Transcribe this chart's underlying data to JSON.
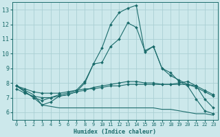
{
  "title": "",
  "xlabel": "Humidex (Indice chaleur)",
  "ylabel": "",
  "background_color": "#cce8eb",
  "grid_color": "#aacfd4",
  "line_color": "#1a6b6b",
  "xlim": [
    -0.5,
    23.5
  ],
  "ylim": [
    5.5,
    13.5
  ],
  "xticks": [
    0,
    1,
    2,
    3,
    4,
    5,
    6,
    7,
    8,
    9,
    10,
    11,
    12,
    13,
    14,
    15,
    16,
    17,
    18,
    19,
    20,
    21,
    22,
    23
  ],
  "yticks": [
    6,
    7,
    8,
    9,
    10,
    11,
    12,
    13
  ],
  "series": [
    {
      "x": [
        0,
        1,
        2,
        3,
        4,
        5,
        6,
        7,
        8,
        9,
        10,
        11,
        12,
        13,
        14,
        15,
        16,
        17,
        18,
        19,
        20,
        21,
        22,
        23
      ],
      "y": [
        7.8,
        7.4,
        7.0,
        6.5,
        6.7,
        7.1,
        7.2,
        7.4,
        8.0,
        9.3,
        10.4,
        12.0,
        12.8,
        13.1,
        13.3,
        10.1,
        10.5,
        9.0,
        8.7,
        8.1,
        7.8,
        6.9,
        6.1,
        5.9
      ],
      "marker": "D",
      "markersize": 2.0,
      "linewidth": 0.8
    },
    {
      "x": [
        0,
        1,
        2,
        3,
        4,
        5,
        6,
        7,
        8,
        9,
        10,
        11,
        12,
        13,
        14,
        15,
        16,
        17,
        18,
        19,
        20,
        21,
        22,
        23
      ],
      "y": [
        7.8,
        7.4,
        7.0,
        6.8,
        7.0,
        7.2,
        7.3,
        7.5,
        8.1,
        9.3,
        9.4,
        10.5,
        11.0,
        12.1,
        11.8,
        10.2,
        10.5,
        9.0,
        8.5,
        8.2,
        7.9,
        7.8,
        6.9,
        6.3
      ],
      "marker": "D",
      "markersize": 2.0,
      "linewidth": 0.8
    },
    {
      "x": [
        0,
        1,
        2,
        3,
        4,
        5,
        6,
        7,
        8,
        9,
        10,
        11,
        12,
        13,
        14,
        15,
        16,
        17,
        18,
        19,
        20,
        21,
        22,
        23
      ],
      "y": [
        7.6,
        7.3,
        7.1,
        7.0,
        7.0,
        7.1,
        7.2,
        7.4,
        7.5,
        7.7,
        7.8,
        7.9,
        8.0,
        8.1,
        8.1,
        8.0,
        8.0,
        7.9,
        7.9,
        8.0,
        8.1,
        7.8,
        7.5,
        7.2
      ],
      "marker": "D",
      "markersize": 2.0,
      "linewidth": 0.8
    },
    {
      "x": [
        0,
        1,
        2,
        3,
        4,
        5,
        6,
        7,
        8,
        9,
        10,
        11,
        12,
        13,
        14,
        15,
        16,
        17,
        18,
        19,
        20,
        21,
        22,
        23
      ],
      "y": [
        7.8,
        7.6,
        7.4,
        7.3,
        7.3,
        7.3,
        7.4,
        7.5,
        7.6,
        7.6,
        7.7,
        7.8,
        7.8,
        7.9,
        7.9,
        7.9,
        7.9,
        7.9,
        7.9,
        7.9,
        7.9,
        7.7,
        7.4,
        7.1
      ],
      "marker": "D",
      "markersize": 2.0,
      "linewidth": 0.8
    },
    {
      "x": [
        0,
        1,
        2,
        3,
        4,
        5,
        6,
        7,
        8,
        9,
        10,
        11,
        12,
        13,
        14,
        15,
        16,
        17,
        18,
        19,
        20,
        21,
        22,
        23
      ],
      "y": [
        7.8,
        7.5,
        7.2,
        6.5,
        6.4,
        6.3,
        6.3,
        6.3,
        6.3,
        6.3,
        6.3,
        6.3,
        6.3,
        6.3,
        6.3,
        6.3,
        6.3,
        6.2,
        6.2,
        6.1,
        6.0,
        5.9,
        5.9,
        5.8
      ],
      "marker": null,
      "markersize": 0,
      "linewidth": 0.8
    }
  ]
}
